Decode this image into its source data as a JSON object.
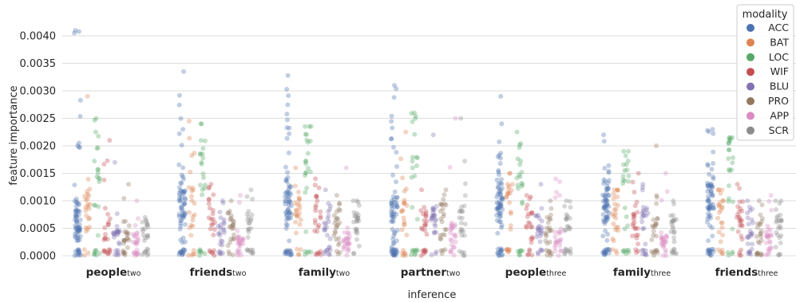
{
  "chart_data": {
    "type": "scatter",
    "xlabel": "inference",
    "ylabel": "feature importance",
    "ylim": [
      0,
      0.0042
    ],
    "yticks": [
      "0.0000",
      "0.0005",
      "0.0010",
      "0.0015",
      "0.0020",
      "0.0025",
      "0.0030",
      "0.0035",
      "0.0040"
    ],
    "grid": "horizontal",
    "legend_placement": "upper-right",
    "categories": [
      {
        "main": "people",
        "sub": "two"
      },
      {
        "main": "friends",
        "sub": "two"
      },
      {
        "main": "family",
        "sub": "two"
      },
      {
        "main": "partner",
        "sub": "two"
      },
      {
        "main": "people",
        "sub": "three"
      },
      {
        "main": "family",
        "sub": "three"
      },
      {
        "main": "friends",
        "sub": "three"
      }
    ],
    "legend_title": "modality",
    "series": [
      {
        "name": "ACC",
        "color": "#4c72b0",
        "centers": [
          0.00065,
          0.0009,
          0.00095,
          0.00085,
          0.00095,
          0.0009,
          0.001
        ],
        "maxes": [
          0.0041,
          0.00335,
          0.00328,
          0.0031,
          0.0029,
          0.0022,
          0.0023
        ]
      },
      {
        "name": "BAT",
        "color": "#dd8452",
        "centers": [
          0.0008,
          0.0009,
          0.0008,
          0.0009,
          0.0009,
          0.0008,
          0.0008
        ],
        "maxes": [
          0.0029,
          0.00245,
          0.0016,
          0.00225,
          0.0015,
          0.0012,
          0.0012
        ]
      },
      {
        "name": "LOC",
        "color": "#55a868",
        "centers": [
          0.0016,
          0.0016,
          0.0016,
          0.0015,
          0.0015,
          0.0013,
          0.0015
        ],
        "maxes": [
          0.0025,
          0.0024,
          0.00235,
          0.0026,
          0.00225,
          0.0019,
          0.00215
        ]
      },
      {
        "name": "WIF",
        "color": "#c44e52",
        "centers": [
          0.0005,
          0.0007,
          0.0008,
          0.0006,
          0.0007,
          0.0008,
          0.0007
        ],
        "maxes": [
          0.0021,
          0.0013,
          0.0014,
          0.0012,
          0.0011,
          0.0015,
          0.0013
        ]
      },
      {
        "name": "BLU",
        "color": "#8172b3",
        "centers": [
          0.0004,
          0.0005,
          0.0005,
          0.0006,
          0.0005,
          0.0006,
          0.0005
        ],
        "maxes": [
          0.0017,
          0.001,
          0.0012,
          0.0022,
          0.0013,
          0.0013,
          0.001
        ]
      },
      {
        "name": "PRO",
        "color": "#937860",
        "centers": [
          0.0004,
          0.0005,
          0.0006,
          0.0007,
          0.0005,
          0.0005,
          0.0005
        ],
        "maxes": [
          0.0013,
          0.001,
          0.0011,
          0.0012,
          0.001,
          0.002,
          0.001
        ]
      },
      {
        "name": "APP",
        "color": "#da8bc3",
        "centers": [
          0.00025,
          0.00025,
          0.0003,
          0.0004,
          0.0003,
          0.0003,
          0.0003
        ],
        "maxes": [
          0.001,
          0.0011,
          0.0016,
          0.0025,
          0.0014,
          0.0015,
          0.0011
        ]
      },
      {
        "name": "SCR",
        "color": "#8c8c8c",
        "centers": [
          0.0004,
          0.0005,
          0.0006,
          0.0007,
          0.0006,
          0.0005,
          0.0005
        ],
        "maxes": [
          0.0007,
          0.0012,
          0.001,
          0.0025,
          0.001,
          0.001,
          0.001
        ]
      }
    ]
  }
}
